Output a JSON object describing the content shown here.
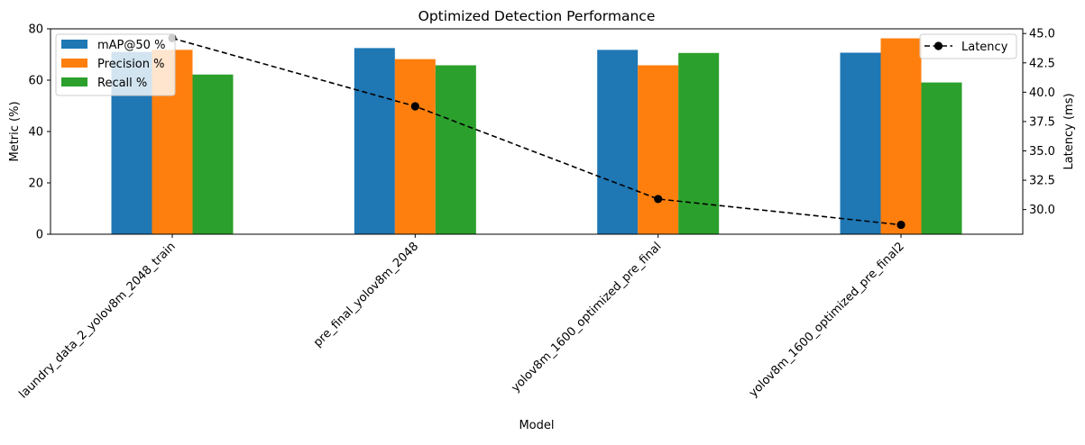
{
  "chart_data": {
    "type": "bar",
    "title": "Optimized Detection Performance",
    "xlabel": "Model",
    "ylabel": "Metric (%)",
    "y2label": "Latency (ms)",
    "categories": [
      "laundry_data_2_yolov8m_2048_train",
      "pre_final_yolov8m_2048",
      "yolov8m_1600_optimized_pre_final",
      "yolov8m_1600_optimized_pre_final2"
    ],
    "series": [
      {
        "name": "mAP@50 %",
        "color": "#1f77b4",
        "values": [
          71.0,
          72.5,
          71.8,
          70.7
        ]
      },
      {
        "name": "Precision %",
        "color": "#ff7f0e",
        "values": [
          71.8,
          68.2,
          65.8,
          76.3
        ]
      },
      {
        "name": "Recall %",
        "color": "#2ca02c",
        "values": [
          62.2,
          65.8,
          70.6,
          59.1
        ]
      }
    ],
    "line_series": {
      "name": "Latency",
      "color": "#000000",
      "style": "dashed",
      "marker": "circle",
      "axis": "right",
      "values": [
        44.6,
        38.8,
        30.9,
        28.7
      ]
    },
    "ylim": [
      0,
      80
    ],
    "y_ticks": [
      0,
      20,
      40,
      60,
      80
    ],
    "y2lim": [
      27.9,
      45.4
    ],
    "y2_ticks": [
      30.0,
      32.5,
      35.0,
      37.5,
      40.0,
      42.5,
      45.0
    ],
    "y2_tick_labels": [
      "30.0",
      "32.5",
      "35.0",
      "37.5",
      "40.0",
      "42.5",
      "45.0"
    ],
    "grid": false,
    "legend_bars": "top-left",
    "legend_line": "top-right"
  }
}
